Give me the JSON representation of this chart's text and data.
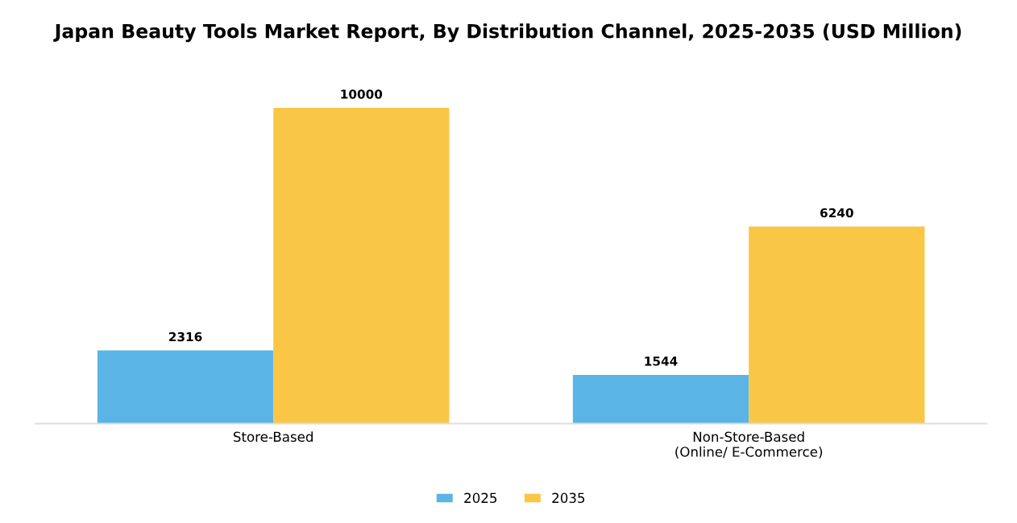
{
  "chart_data": {
    "type": "bar",
    "title": "Japan Beauty Tools Market Report, By Distribution Channel, 2025-2035 (USD Million)",
    "categories": [
      "Store-Based",
      "Non-Store-Based\n(Online/ E-Commerce)"
    ],
    "series": [
      {
        "name": "2025",
        "color": "#5ab4e5",
        "values": [
          2316,
          1544
        ]
      },
      {
        "name": "2035",
        "color": "#f9c646",
        "values": [
          10000,
          6240
        ]
      }
    ],
    "data_labels": true,
    "legend": "bottom",
    "grid": false
  }
}
